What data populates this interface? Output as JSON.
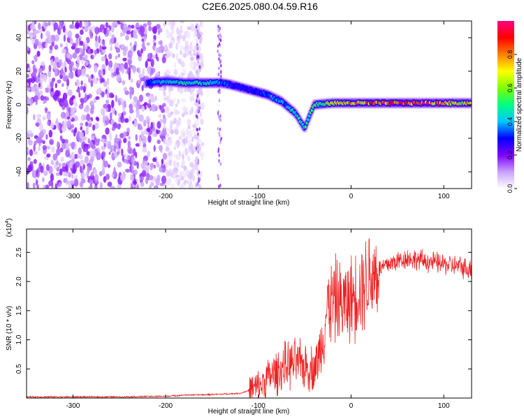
{
  "figure": {
    "title": "C2E6.2025.080.04.59.R16"
  },
  "chart_data": [
    {
      "type": "heatmap",
      "xlabel": "Height of straight line (km)",
      "ylabel": "Frequency (Hz)",
      "xlim": [
        -350,
        130
      ],
      "ylim": [
        -50,
        50
      ],
      "xticks": [
        -300,
        -200,
        -100,
        0,
        100
      ],
      "yticks": [
        -40,
        -20,
        0,
        20,
        40
      ],
      "colorbar": {
        "label": "Normalized spectral amplitude",
        "range": [
          0.0,
          1.0
        ],
        "ticks": [
          0.0,
          0.2,
          0.4,
          0.6,
          0.8
        ],
        "colors": [
          "#ffffff",
          "#c8a0ff",
          "#8000ff",
          "#0000ff",
          "#00c8ff",
          "#00ff80",
          "#80ff00",
          "#ffff00",
          "#ff8000",
          "#ff0000",
          "#ff0080"
        ]
      },
      "noise_region": {
        "x": [
          -350,
          -200
        ],
        "y": [
          -50,
          50
        ],
        "amplitude": 0.15
      },
      "signal_track": [
        {
          "x": -220,
          "y": 13,
          "amplitude": 0.35
        },
        {
          "x": -200,
          "y": 14,
          "amplitude": 0.45
        },
        {
          "x": -180,
          "y": 13,
          "amplitude": 0.5
        },
        {
          "x": -160,
          "y": 13,
          "amplitude": 0.45
        },
        {
          "x": -140,
          "y": 13,
          "amplitude": 0.4
        },
        {
          "x": -130,
          "y": 12,
          "amplitude": 0.3
        },
        {
          "x": -110,
          "y": 9,
          "amplitude": 0.3
        },
        {
          "x": -90,
          "y": 6,
          "amplitude": 0.35
        },
        {
          "x": -75,
          "y": 2,
          "amplitude": 0.4
        },
        {
          "x": -60,
          "y": -5,
          "amplitude": 0.45
        },
        {
          "x": -50,
          "y": -14,
          "amplitude": 0.5
        },
        {
          "x": -40,
          "y": 0,
          "amplitude": 0.55
        },
        {
          "x": -20,
          "y": 1,
          "amplitude": 0.65
        },
        {
          "x": 0,
          "y": 1,
          "amplitude": 0.8
        },
        {
          "x": 30,
          "y": 1,
          "amplitude": 0.9
        },
        {
          "x": 60,
          "y": 1,
          "amplitude": 0.95
        },
        {
          "x": 90,
          "y": 1,
          "amplitude": 0.9
        },
        {
          "x": 130,
          "y": 1,
          "amplitude": 0.7
        }
      ]
    },
    {
      "type": "line",
      "xlabel": "Height of straight line (km)",
      "ylabel": "SNR (10 * v/v)",
      "yscale_label": "(x10",
      "yscale_exponent": "4",
      "xlim": [
        -350,
        130
      ],
      "ylim": [
        0,
        2.9
      ],
      "xticks": [
        -300,
        -200,
        -100,
        0,
        100
      ],
      "yticks": [
        0.5,
        1.0,
        1.5,
        2.0,
        2.5
      ],
      "color": "#ee2222",
      "x": [
        -350,
        -300,
        -250,
        -200,
        -180,
        -150,
        -120,
        -100,
        -90,
        -80,
        -70,
        -60,
        -50,
        -40,
        -35,
        -30,
        -25,
        -20,
        -15,
        -10,
        -5,
        0,
        10,
        20,
        30,
        40,
        50,
        60,
        80,
        100,
        120,
        130
      ],
      "y": [
        0.02,
        0.02,
        0.02,
        0.03,
        0.05,
        0.06,
        0.08,
        0.18,
        0.35,
        0.45,
        0.55,
        0.6,
        0.55,
        0.5,
        0.7,
        1.1,
        1.6,
        1.65,
        1.7,
        1.6,
        1.65,
        1.7,
        1.9,
        2.1,
        2.2,
        2.3,
        2.35,
        2.4,
        2.35,
        2.3,
        2.25,
        2.2
      ]
    }
  ]
}
